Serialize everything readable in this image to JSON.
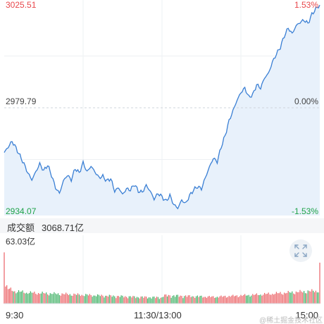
{
  "price_axis": {
    "high": "3025.51",
    "mid": "2979.79",
    "low": "2934.07",
    "high_pct": "1.53%",
    "mid_pct": "0.00%",
    "low_pct": "-1.53%"
  },
  "volume": {
    "label": "成交额",
    "total": "3068.71亿",
    "max": "63.03亿"
  },
  "time_axis": {
    "start": "9:30",
    "mid": "11:30/13:00",
    "end": "15:00"
  },
  "watermark": "@稀土掘金技术社区",
  "icons": {
    "expand": "expand-icon"
  },
  "colors": {
    "line": "#3a7fd4",
    "up": "#e8474b",
    "down": "#1fa34a",
    "fill": "#e8f1fb"
  },
  "chart_data": {
    "type": "line",
    "ylim": [
      2934.07,
      3025.51
    ],
    "baseline": 2979.79,
    "minutes": 240,
    "y_keypoints": [
      [
        0,
        2960.0
      ],
      [
        3,
        2962.5
      ],
      [
        6,
        2965.0
      ],
      [
        9,
        2962.0
      ],
      [
        12,
        2958.5
      ],
      [
        15,
        2955.0
      ],
      [
        18,
        2951.0
      ],
      [
        21,
        2948.0
      ],
      [
        24,
        2951.5
      ],
      [
        27,
        2955.0
      ],
      [
        30,
        2952.0
      ],
      [
        33,
        2954.5
      ],
      [
        36,
        2950.0
      ],
      [
        39,
        2944.5
      ],
      [
        42,
        2942.0
      ],
      [
        45,
        2947.5
      ],
      [
        48,
        2950.0
      ],
      [
        51,
        2948.0
      ],
      [
        54,
        2953.0
      ],
      [
        57,
        2951.0
      ],
      [
        60,
        2955.5
      ],
      [
        63,
        2951.5
      ],
      [
        66,
        2954.0
      ],
      [
        69,
        2951.5
      ],
      [
        72,
        2949.0
      ],
      [
        75,
        2949.5
      ],
      [
        78,
        2947.5
      ],
      [
        81,
        2948.5
      ],
      [
        84,
        2943.0
      ],
      [
        87,
        2944.5
      ],
      [
        90,
        2941.5
      ],
      [
        93,
        2944.0
      ],
      [
        96,
        2943.5
      ],
      [
        99,
        2946.0
      ],
      [
        102,
        2943.0
      ],
      [
        105,
        2942.5
      ],
      [
        108,
        2945.5
      ],
      [
        111,
        2943.0
      ],
      [
        114,
        2939.5
      ],
      [
        117,
        2942.0
      ],
      [
        120,
        2940.5
      ],
      [
        123,
        2938.5
      ],
      [
        126,
        2941.0
      ],
      [
        129,
        2937.0
      ],
      [
        132,
        2935.5
      ],
      [
        135,
        2939.0
      ],
      [
        138,
        2937.5
      ],
      [
        141,
        2941.0
      ],
      [
        144,
        2943.5
      ],
      [
        147,
        2945.0
      ],
      [
        150,
        2944.0
      ],
      [
        153,
        2949.0
      ],
      [
        156,
        2953.5
      ],
      [
        159,
        2957.5
      ],
      [
        162,
        2956.0
      ],
      [
        165,
        2962.5
      ],
      [
        168,
        2967.5
      ],
      [
        171,
        2974.0
      ],
      [
        174,
        2978.5
      ],
      [
        177,
        2983.0
      ],
      [
        180,
        2986.5
      ],
      [
        183,
        2988.5
      ],
      [
        186,
        2984.5
      ],
      [
        189,
        2985.5
      ],
      [
        192,
        2990.0
      ],
      [
        195,
        2988.5
      ],
      [
        198,
        2993.0
      ],
      [
        201,
        2995.0
      ],
      [
        204,
        3000.0
      ],
      [
        207,
        3003.5
      ],
      [
        210,
        3006.5
      ],
      [
        213,
        3011.5
      ],
      [
        216,
        3015.0
      ],
      [
        219,
        3012.5
      ],
      [
        222,
        3016.0
      ],
      [
        225,
        3017.5
      ],
      [
        228,
        3018.5
      ],
      [
        231,
        3017.0
      ],
      [
        234,
        3021.0
      ],
      [
        237,
        3023.5
      ],
      [
        240,
        3025.0
      ]
    ],
    "volume_ylim": [
      0,
      63.03
    ],
    "volume_profile": [
      [
        0,
        63.03
      ],
      [
        1,
        18.0
      ],
      [
        3,
        14.5
      ],
      [
        8,
        12.0
      ],
      [
        20,
        10.5
      ],
      [
        60,
        8.5
      ],
      [
        100,
        6.5
      ],
      [
        120,
        6.0
      ],
      [
        121,
        8.0
      ],
      [
        160,
        6.5
      ],
      [
        190,
        8.5
      ],
      [
        220,
        11.0
      ],
      [
        239,
        12.5
      ],
      [
        240,
        36.0
      ]
    ]
  }
}
